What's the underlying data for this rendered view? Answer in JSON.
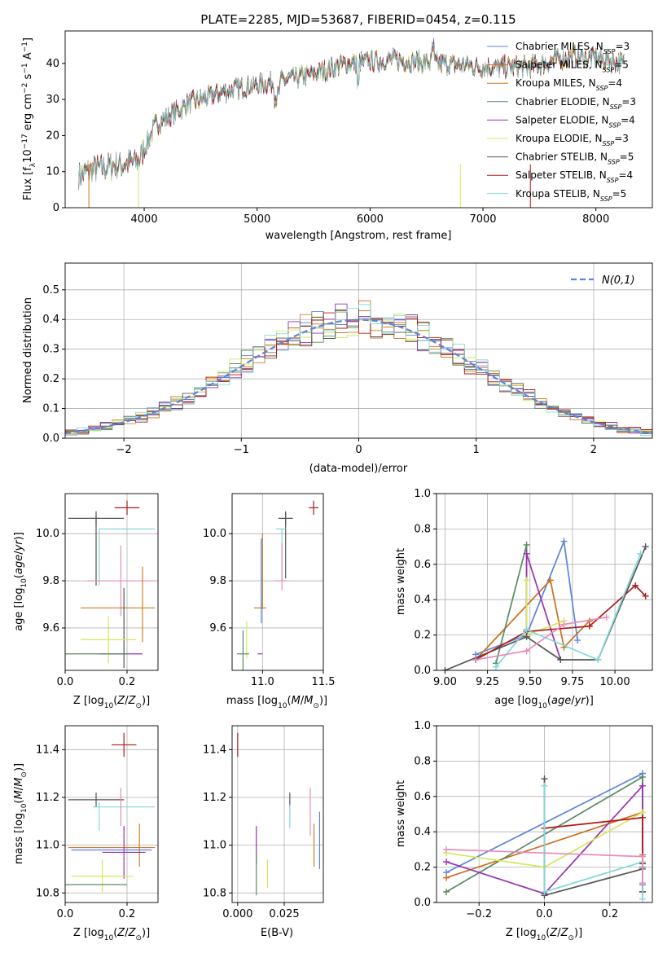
{
  "title": "PLATE=2285, MJD=53687, FIBERID=0454, z=0.115",
  "colors": {
    "chab_miles": "#5b84d8",
    "salp_miles": "#cc6f1e",
    "krou_miles": "#d27d24",
    "chab_elodie": "#5b8a63",
    "salp_elodie": "#9931ad",
    "krou_elodie": "#d6e75e",
    "chab_stelib": "#555555",
    "salp_stelib": "#b01818",
    "krou_stelib": "#82d9d9",
    "pink": "#e98bbb",
    "normal": "#5b84d8"
  },
  "chart_data": [
    {
      "id": "spectrum",
      "type": "line",
      "xlabel": "wavelength [Angstrom, rest frame]",
      "ylabel": "Flux [f_λ10^-17 erg cm^-2 s^-1 A^-1]",
      "xlim": [
        3300,
        8500
      ],
      "ylim": [
        0,
        49
      ],
      "xticks": [
        4000,
        5000,
        6000,
        7000,
        8000
      ],
      "yticks": [
        0,
        10,
        20,
        30,
        40
      ],
      "grid": false,
      "legend_position": "top-right",
      "continuum_x": [
        3420,
        3600,
        3800,
        3950,
        4100,
        4400,
        4800,
        5200,
        5500,
        5800,
        6200,
        6600,
        7000,
        7400,
        7800,
        8100,
        8250
      ],
      "continuum_y": [
        9,
        11,
        12,
        13,
        23,
        29,
        33,
        35,
        37,
        40,
        41,
        40,
        39,
        39,
        42,
        41,
        40
      ],
      "series": [
        {
          "name": "Chabrier MILES, N_SSP=3",
          "color_key": "chab_miles"
        },
        {
          "name": "Salpeter MILES, N_SSP=5",
          "color_key": "salp_miles"
        },
        {
          "name": "Kroupa MILES, N_SSP=4",
          "color_key": "krou_miles"
        },
        {
          "name": "Chabrier ELODIE, N_SSP=3",
          "color_key": "chab_elodie"
        },
        {
          "name": "Salpeter ELODIE, N_SSP=4",
          "color_key": "salp_elodie"
        },
        {
          "name": "Kroupa ELODIE, N_SSP=3",
          "color_key": "krou_elodie"
        },
        {
          "name": "Chabrier STELIB, N_SSP=5",
          "color_key": "chab_stelib"
        },
        {
          "name": "Salpeter STELIB, N_SSP=4",
          "color_key": "salp_stelib"
        },
        {
          "name": "Kroupa STELIB, N_SSP=5",
          "color_key": "krou_stelib"
        }
      ]
    },
    {
      "id": "histogram",
      "type": "bar",
      "xlabel": "(data-model)/error",
      "ylabel": "Normed distribution",
      "xlim": [
        -2.5,
        2.5
      ],
      "ylim": [
        0,
        0.59
      ],
      "xticks": [
        -2,
        -1,
        0,
        1,
        2
      ],
      "yticks": [
        0.0,
        0.1,
        0.2,
        0.3,
        0.4,
        0.5
      ],
      "grid": true,
      "legend_position": "top-right",
      "legend": "N(0,1)"
    },
    {
      "id": "age_vs_Z",
      "type": "scatter",
      "xlabel": "Z [log10(Z/Z⊙)]",
      "ylabel": "age  [log10(age/yr)]",
      "xlim": [
        0.0,
        0.3
      ],
      "ylim": [
        9.42,
        10.17
      ],
      "xticks": [
        0.0,
        0.2
      ],
      "yticks": [
        9.6,
        9.8,
        10.0
      ],
      "grid": true,
      "points": [
        {
          "c": "salp_stelib",
          "x": 0.2,
          "y": 10.11,
          "xe": 0.04,
          "ye": 0.03
        },
        {
          "c": "chab_stelib",
          "x": 0.1,
          "y": 10.065,
          "xe": 0.09,
          "ye": 0.03
        },
        {
          "c": "chab_stelib",
          "x": 0.1,
          "y": 9.93,
          "xe": 0.0,
          "ye": 0.15
        },
        {
          "c": "krou_stelib",
          "x": 0.2,
          "y": 10.02,
          "xe": 0.09,
          "ye": 0.0
        },
        {
          "c": "krou_stelib",
          "x": 0.11,
          "y": 9.9,
          "xe": 0.0,
          "ye": 0.12
        },
        {
          "c": "pink",
          "x": 0.18,
          "y": 9.8,
          "xe": 0.11,
          "ye": 0.0
        },
        {
          "c": "pink",
          "x": 0.18,
          "y": 9.8,
          "xe": 0.0,
          "ye": 0.15
        },
        {
          "c": "krou_miles",
          "x": 0.25,
          "y": 9.7,
          "xe": 0.0,
          "ye": 0.16
        },
        {
          "c": "krou_miles",
          "x": 0.17,
          "y": 9.685,
          "xe": 0.12,
          "ye": 0.0
        },
        {
          "c": "chab_stelib",
          "x": 0.19,
          "y": 9.6,
          "xe": 0.0,
          "ye": 0.17
        },
        {
          "c": "salp_elodie",
          "x": 0.18,
          "y": 9.49,
          "xe": 0.07,
          "ye": 0.0
        },
        {
          "c": "krou_elodie",
          "x": 0.14,
          "y": 9.55,
          "xe": 0.09,
          "ye": 0.1
        },
        {
          "c": "chab_elodie",
          "x": 0.1,
          "y": 9.49,
          "xe": 0.1,
          "ye": 0.0
        }
      ]
    },
    {
      "id": "age_vs_mass",
      "type": "scatter",
      "xlabel": "mass [log10(M/M⊙)]",
      "ylabel": "",
      "xlim": [
        10.75,
        11.5
      ],
      "ylim": [
        9.42,
        10.17
      ],
      "xticks": [
        11.0,
        11.5
      ],
      "yticks": [
        9.6,
        9.8,
        10.0
      ],
      "grid": true,
      "points": [
        {
          "c": "salp_stelib",
          "x": 11.42,
          "y": 10.11,
          "xe": 0.04,
          "ye": 0.03
        },
        {
          "c": "chab_stelib",
          "x": 11.19,
          "y": 10.065,
          "xe": 0.06,
          "ye": 0.03
        },
        {
          "c": "chab_stelib",
          "x": 11.19,
          "y": 9.95,
          "xe": 0.0,
          "ye": 0.14
        },
        {
          "c": "krou_stelib",
          "x": 11.15,
          "y": 10.02,
          "xe": 0.04,
          "ye": 0.0
        },
        {
          "c": "krou_stelib",
          "x": 11.16,
          "y": 9.91,
          "xe": 0.0,
          "ye": 0.11
        },
        {
          "c": "pink",
          "x": 11.15,
          "y": 9.8,
          "xe": 0.05,
          "ye": 0.0
        },
        {
          "c": "pink",
          "x": 11.16,
          "y": 9.86,
          "xe": 0.0,
          "ye": 0.1
        },
        {
          "c": "krou_miles",
          "x": 11.0,
          "y": 9.84,
          "xe": 0.0,
          "ye": 0.16
        },
        {
          "c": "krou_miles",
          "x": 10.98,
          "y": 9.685,
          "xe": 0.05,
          "ye": 0.0
        },
        {
          "c": "chab_miles",
          "x": 10.99,
          "y": 9.8,
          "xe": 0.0,
          "ye": 0.18
        },
        {
          "c": "salp_elodie",
          "x": 10.98,
          "y": 9.49,
          "xe": 0.02,
          "ye": 0.0
        },
        {
          "c": "krou_elodie",
          "x": 10.87,
          "y": 9.55,
          "xe": 0.0,
          "ye": 0.08
        },
        {
          "c": "chab_elodie",
          "x": 10.84,
          "y": 9.49,
          "xe": 0.05,
          "ye": 0.1
        }
      ]
    },
    {
      "id": "weight_vs_age",
      "type": "line",
      "xlabel": "age  [log10(age/yr)]",
      "ylabel": "mass weight",
      "xlim": [
        8.95,
        10.22
      ],
      "ylim": [
        0.0,
        1.0
      ],
      "xticks": [
        9.0,
        9.25,
        9.5,
        9.75,
        10.0
      ],
      "yticks": [
        0.0,
        0.2,
        0.4,
        0.6,
        0.8,
        1.0
      ],
      "grid": true,
      "series": [
        {
          "c": "chab_miles",
          "x": [
            9.18,
            9.48,
            9.7,
            9.78
          ],
          "y": [
            0.09,
            0.2,
            0.73,
            0.17
          ]
        },
        {
          "c": "salp_miles",
          "x": [
            9.18,
            9.62,
            9.7,
            9.85
          ],
          "y": [
            0.06,
            0.51,
            0.13,
            0.28
          ]
        },
        {
          "c": "chab_elodie",
          "x": [
            9.3,
            9.48,
            9.48
          ],
          "y": [
            0.04,
            0.71,
            0.2
          ]
        },
        {
          "c": "salp_elodie",
          "x": [
            9.48,
            9.48,
            9.68
          ],
          "y": [
            0.23,
            0.66,
            0.06
          ]
        },
        {
          "c": "krou_elodie",
          "x": [
            9.48,
            9.48,
            9.7
          ],
          "y": [
            0.51,
            0.2,
            0.28
          ]
        },
        {
          "c": "chab_stelib",
          "x": [
            9.0,
            9.48,
            9.68,
            9.9,
            10.18
          ],
          "y": [
            0.0,
            0.19,
            0.06,
            0.06,
            0.7
          ]
        },
        {
          "c": "salp_stelib",
          "x": [
            9.18,
            9.48,
            9.85,
            10.12,
            10.18
          ],
          "y": [
            0.06,
            0.22,
            0.25,
            0.48,
            0.42
          ]
        },
        {
          "c": "krou_stelib",
          "x": [
            9.3,
            9.48,
            9.9,
            10.15
          ],
          "y": [
            0.02,
            0.23,
            0.06,
            0.66
          ]
        },
        {
          "c": "pink",
          "x": [
            9.18,
            9.48,
            9.7,
            9.95
          ],
          "y": [
            0.06,
            0.11,
            0.26,
            0.3
          ]
        }
      ]
    },
    {
      "id": "mass_vs_Z",
      "type": "scatter",
      "xlabel": "Z [log10(Z/Z⊙)]",
      "ylabel": "mass [log10(M/M⊙)]",
      "xlim": [
        0.0,
        0.3
      ],
      "ylim": [
        10.76,
        11.5
      ],
      "xticks": [
        0.0,
        0.2
      ],
      "yticks": [
        10.8,
        11.0,
        11.2,
        11.4
      ],
      "grid": true,
      "points": [
        {
          "c": "salp_stelib",
          "x": 0.19,
          "y": 11.42,
          "xe": 0.04,
          "ye": 0.05
        },
        {
          "c": "chab_stelib",
          "x": 0.1,
          "y": 11.19,
          "xe": 0.09,
          "ye": 0.03
        },
        {
          "c": "krou_stelib",
          "x": 0.19,
          "y": 11.16,
          "xe": 0.1,
          "ye": 0.0
        },
        {
          "c": "krou_stelib",
          "x": 0.11,
          "y": 11.12,
          "xe": 0.0,
          "ye": 0.06
        },
        {
          "c": "pink",
          "x": 0.18,
          "y": 11.16,
          "xe": 0.0,
          "ye": 0.08
        },
        {
          "c": "krou_miles",
          "x": 0.24,
          "y": 11.0,
          "xe": 0.0,
          "ye": 0.09
        },
        {
          "c": "krou_miles",
          "x": 0.15,
          "y": 10.99,
          "xe": 0.14,
          "ye": 0.0
        },
        {
          "c": "chab_miles",
          "x": 0.15,
          "y": 10.98,
          "xe": 0.13,
          "ye": 0.0
        },
        {
          "c": "salp_elodie",
          "x": 0.19,
          "y": 10.97,
          "xe": 0.07,
          "ye": 0.11
        },
        {
          "c": "krou_elodie",
          "x": 0.12,
          "y": 10.87,
          "xe": 0.1,
          "ye": 0.07
        },
        {
          "c": "chab_elodie",
          "x": 0.09,
          "y": 10.835,
          "xe": 0.11,
          "ye": 0.0
        }
      ]
    },
    {
      "id": "mass_vs_EBV",
      "type": "scatter",
      "xlabel": "E(B-V)",
      "ylabel": "",
      "xlim": [
        -0.003,
        0.046
      ],
      "ylim": [
        10.76,
        11.5
      ],
      "xticks": [
        0.0,
        0.025
      ],
      "yticks": [
        10.8,
        11.0,
        11.2,
        11.4
      ],
      "grid": true,
      "points": [
        {
          "c": "salp_stelib",
          "x": 0.0,
          "y": 11.42,
          "xe": 0.0,
          "ye": 0.05
        },
        {
          "c": "chab_stelib",
          "x": 0.028,
          "y": 11.19,
          "xe": 0.0,
          "ye": 0.03
        },
        {
          "c": "krou_stelib",
          "x": 0.028,
          "y": 11.12,
          "xe": 0.0,
          "ye": 0.05
        },
        {
          "c": "pink",
          "x": 0.039,
          "y": 11.14,
          "xe": 0.0,
          "ye": 0.1
        },
        {
          "c": "krou_miles",
          "x": 0.041,
          "y": 11.0,
          "xe": 0.0,
          "ye": 0.09
        },
        {
          "c": "chab_miles",
          "x": 0.044,
          "y": 11.02,
          "xe": 0.0,
          "ye": 0.12
        },
        {
          "c": "salp_elodie",
          "x": 0.01,
          "y": 11.0,
          "xe": 0.0,
          "ye": 0.08
        },
        {
          "c": "chab_elodie",
          "x": 0.01,
          "y": 10.88,
          "xe": 0.0,
          "ye": 0.09
        },
        {
          "c": "krou_elodie",
          "x": 0.016,
          "y": 10.88,
          "xe": 0.0,
          "ye": 0.06
        }
      ]
    },
    {
      "id": "weight_vs_Z",
      "type": "line",
      "xlabel": "Z [log10(Z/Z⊙)]",
      "ylabel": "mass weight",
      "xlim": [
        -0.33,
        0.33
      ],
      "ylim": [
        0.0,
        1.0
      ],
      "xticks": [
        -0.2,
        0.0,
        0.2
      ],
      "yticks": [
        0.0,
        0.2,
        0.4,
        0.6,
        0.8,
        1.0
      ],
      "grid": true,
      "series": [
        {
          "c": "chab_miles",
          "x": [
            -0.3,
            0.3,
            0.3
          ],
          "y": [
            0.17,
            0.73,
            0.1
          ]
        },
        {
          "c": "salp_miles",
          "x": [
            -0.3,
            0.3,
            0.3,
            0.3
          ],
          "y": [
            0.14,
            0.51,
            0.27,
            0.06
          ]
        },
        {
          "c": "chab_elodie",
          "x": [
            -0.3,
            0.3,
            0.3
          ],
          "y": [
            0.06,
            0.71,
            0.2
          ]
        },
        {
          "c": "salp_elodie",
          "x": [
            -0.3,
            0.0,
            0.3,
            0.3
          ],
          "y": [
            0.23,
            0.05,
            0.66,
            0.06
          ]
        },
        {
          "c": "krou_elodie",
          "x": [
            -0.3,
            0.0,
            0.3
          ],
          "y": [
            0.28,
            0.2,
            0.51
          ]
        },
        {
          "c": "chab_stelib",
          "x": [
            0.0,
            0.0,
            0.3,
            0.3
          ],
          "y": [
            0.7,
            0.04,
            0.19,
            0.06
          ]
        },
        {
          "c": "salp_stelib",
          "x": [
            0.0,
            0.3,
            0.3
          ],
          "y": [
            0.42,
            0.48,
            0.22
          ]
        },
        {
          "c": "krou_stelib",
          "x": [
            0.0,
            0.0,
            0.3,
            0.3
          ],
          "y": [
            0.66,
            0.06,
            0.23,
            0.02
          ]
        },
        {
          "c": "pink",
          "x": [
            -0.3,
            0.3,
            0.3
          ],
          "y": [
            0.3,
            0.26,
            0.11
          ]
        }
      ]
    }
  ]
}
